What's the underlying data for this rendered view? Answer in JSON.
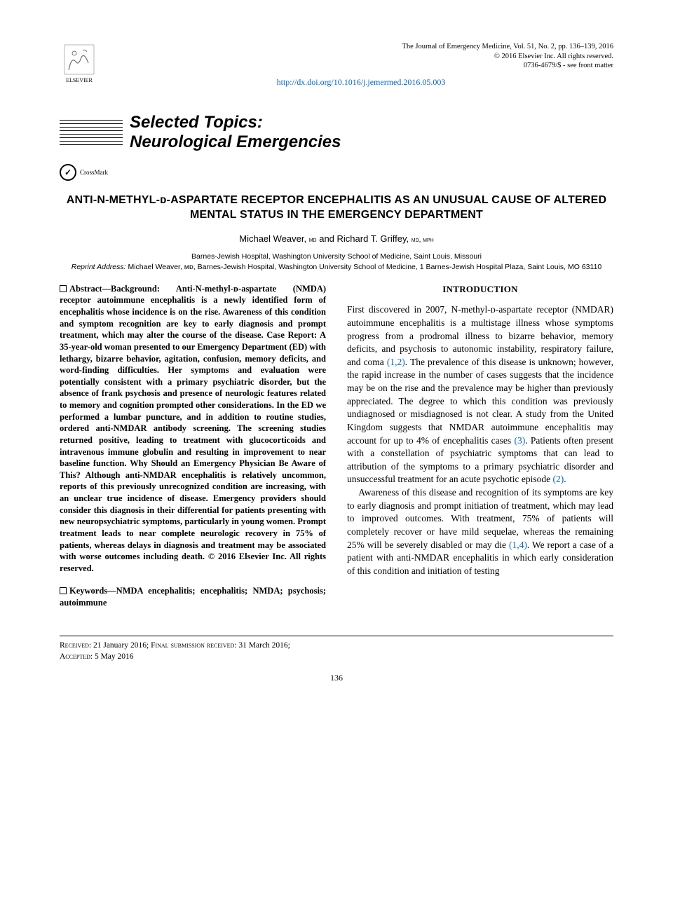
{
  "meta": {
    "journal_line": "The Journal of Emergency Medicine, Vol. 51, No. 2, pp. 136–139, 2016",
    "copyright_line": "© 2016 Elsevier Inc. All rights reserved.",
    "issn_line": "0736-4679/$ - see front matter",
    "doi_url": "http://dx.doi.org/10.1016/j.jemermed.2016.05.003",
    "elsevier_label": "ELSEVIER",
    "crossmark_label": "CrossMark"
  },
  "banner": {
    "line1": "Selected Topics:",
    "line2": "Neurological Emergencies"
  },
  "title": "ANTI-N-METHYL-ᴅ-ASPARTATE RECEPTOR ENCEPHALITIS AS AN UNUSUAL CAUSE OF ALTERED MENTAL STATUS IN THE EMERGENCY DEPARTMENT",
  "authors_html": "Michael Weaver, <span class=\"deg smallcaps\">md</span> and Richard T. Griffey, <span class=\"deg smallcaps\">md, mph</span>",
  "affiliation": "Barnes-Jewish Hospital, Washington University School of Medicine, Saint Louis, Missouri",
  "reprint_label": "Reprint Address:",
  "reprint_text": "Michael Weaver, ᴍᴅ, Barnes-Jewish Hospital, Washington University School of Medicine, 1 Barnes-Jewish Hospital Plaza, Saint Louis, MO 63110",
  "abstract": {
    "lead": "Abstract—Background:",
    "body": "Anti-N-methyl-ᴅ-aspartate (NMDA) receptor autoimmune encephalitis is a newly identified form of encephalitis whose incidence is on the rise. Awareness of this condition and symptom recognition are key to early diagnosis and prompt treatment, which may alter the course of the disease. Case Report: A 35-year-old woman presented to our Emergency Department (ED) with lethargy, bizarre behavior, agitation, confusion, memory deficits, and word-finding difficulties. Her symptoms and evaluation were potentially consistent with a primary psychiatric disorder, but the absence of frank psychosis and presence of neurologic features related to memory and cognition prompted other considerations. In the ED we performed a lumbar puncture, and in addition to routine studies, ordered anti-NMDAR antibody screening. The screening studies returned positive, leading to treatment with glucocorticoids and intravenous immune globulin and resulting in improvement to near baseline function. Why Should an Emergency Physician Be Aware of This? Although anti-NMDAR encephalitis is relatively uncommon, reports of this previously unrecognized condition are increasing, with an unclear true incidence of disease. Emergency providers should consider this diagnosis in their differential for patients presenting with new neuropsychiatric symptoms, particularly in young women. Prompt treatment leads to near complete neurologic recovery in 75% of patients, whereas delays in diagnosis and treatment may be associated with worse outcomes including death.  © 2016 Elsevier Inc. All rights reserved."
  },
  "keywords": {
    "lead": "Keywords—",
    "body": "NMDA encephalitis; encephalitis; NMDA; psychosis; autoimmune"
  },
  "introduction": {
    "heading": "INTRODUCTION",
    "p1_pre": "First discovered in 2007, N-methyl-ᴅ-aspartate receptor (NMDAR) autoimmune encephalitis is a multistage illness whose symptoms progress from a prodromal illness to bizarre behavior, memory deficits, and psychosis to autonomic instability, respiratory failure, and coma ",
    "ref1": "(1,2)",
    "p1_mid": ". The prevalence of this disease is unknown; however, the rapid increase in the number of cases suggests that the incidence may be on the rise and the prevalence may be higher than previously appreciated. The degree to which this condition was previously undiagnosed or misdiagnosed is not clear. A study from the United Kingdom suggests that NMDAR autoimmune encephalitis may account for up to 4% of encephalitis cases ",
    "ref2": "(3)",
    "p1_post": ". Patients often present with a constellation of psychiatric symptoms that can lead to attribution of the symptoms to a primary psychiatric disorder and unsuccessful treatment for an acute psychotic episode ",
    "ref3": "(2)",
    "p1_end": ".",
    "p2_pre": "Awareness of this disease and recognition of its symptoms are key to early diagnosis and prompt initiation of treatment, which may lead to improved outcomes. With treatment, 75% of patients will completely recover or have mild sequelae, whereas the remaining 25% will be severely disabled or may die ",
    "ref4": "(1,4)",
    "p2_post": ". We report a case of a patient with anti-NMDAR encephalitis in which early consideration of this condition and initiation of testing"
  },
  "footer": {
    "received_label": "Received:",
    "received_date": "21 January 2016;",
    "final_label": "Final submission received:",
    "final_date": "31 March 2016;",
    "accepted_label": "Accepted:",
    "accepted_date": "5 May 2016",
    "page_number": "136"
  },
  "colors": {
    "link": "#0066cc",
    "text": "#000000",
    "background": "#ffffff"
  }
}
